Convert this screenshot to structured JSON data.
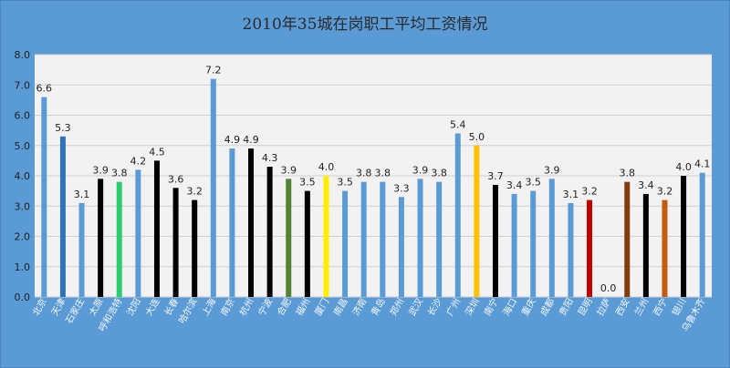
{
  "chart_data": {
    "type": "bar",
    "title": "2010年35城在岗职工平均工资情况",
    "xlabel": "",
    "ylabel": "",
    "ylim": [
      0,
      8
    ],
    "yticks": [
      "0.0",
      "1.0",
      "2.0",
      "3.0",
      "4.0",
      "5.0",
      "6.0",
      "7.0",
      "8.0"
    ],
    "grid": true,
    "categories": [
      "北京",
      "天津",
      "石家庄",
      "太原",
      "呼和浩特",
      "沈阳",
      "大连",
      "长春",
      "哈尔滨",
      "上海",
      "南京",
      "杭州",
      "宁波",
      "合肥",
      "福州",
      "厦门",
      "南昌",
      "济南",
      "青岛",
      "郑州",
      "武汉",
      "长沙",
      "广州",
      "深圳",
      "南宁",
      "海口",
      "重庆",
      "成都",
      "贵阳",
      "昆明",
      "拉萨",
      "西安",
      "兰州",
      "西宁",
      "银川",
      "乌鲁木齐"
    ],
    "values": [
      6.6,
      5.3,
      3.1,
      3.9,
      3.8,
      4.2,
      4.5,
      3.6,
      3.2,
      7.2,
      4.9,
      4.9,
      4.3,
      3.9,
      3.5,
      4.0,
      3.5,
      3.8,
      3.8,
      3.3,
      3.9,
      3.8,
      5.4,
      5.0,
      3.7,
      3.4,
      3.5,
      3.9,
      3.1,
      3.2,
      0.0,
      3.8,
      3.4,
      3.2,
      4.0,
      4.1
    ],
    "labels": [
      "6.6",
      "5.3",
      "3.1",
      "3.9",
      "3.8",
      "4.2",
      "4.5",
      "3.6",
      "3.2",
      "7.2",
      "4.9",
      "4.9",
      "4.3",
      "3.9",
      "3.5",
      "4.0",
      "3.5",
      "3.8",
      "3.8",
      "3.3",
      "3.9",
      "3.8",
      "5.4",
      "5.0",
      "3.7",
      "3.4",
      "3.5",
      "3.9",
      "3.1",
      "3.2",
      "0.0",
      "3.8",
      "3.4",
      "3.2",
      "4.0",
      "4.1"
    ],
    "bar_colors": [
      "#5b9bd5",
      "#2e75b6",
      "#5b9bd5",
      "#000000",
      "#2ecc71",
      "#5b9bd5",
      "#000000",
      "#000000",
      "#000000",
      "#5b9bd5",
      "#5b9bd5",
      "#000000",
      "#000000",
      "#548235",
      "#000000",
      "#ffee00",
      "#5b9bd5",
      "#5b9bd5",
      "#5b9bd5",
      "#5b9bd5",
      "#5b9bd5",
      "#5b9bd5",
      "#5b9bd5",
      "#ffc000",
      "#000000",
      "#5b9bd5",
      "#5b9bd5",
      "#5b9bd5",
      "#5b9bd5",
      "#c00000",
      "#5b9bd5",
      "#843c0c",
      "#000000",
      "#c55a11",
      "#000000",
      "#5b9bd5"
    ],
    "plot_bg": "#f2f2f2",
    "frame_color": "#5b9bd5"
  }
}
